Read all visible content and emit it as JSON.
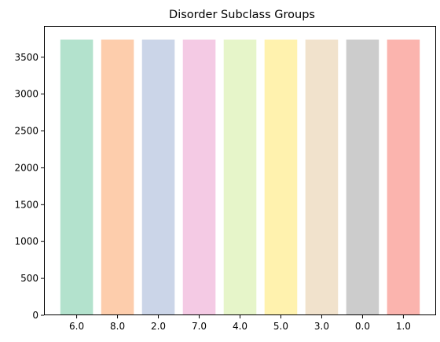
{
  "chart_data": {
    "type": "bar",
    "title": "Disorder Subclass Groups",
    "xlabel": "",
    "ylabel": "",
    "categories": [
      "6.0",
      "8.0",
      "2.0",
      "7.0",
      "4.0",
      "5.0",
      "3.0",
      "0.0",
      "1.0"
    ],
    "values": [
      3738,
      3738,
      3738,
      3738,
      3738,
      3738,
      3738,
      3738,
      3738
    ],
    "colors": [
      "#b3e2cd",
      "#fdcdac",
      "#cbd5e8",
      "#f4cae4",
      "#e6f5c9",
      "#fff2ae",
      "#f1e2cc",
      "#cccccc",
      "#fbb4ae"
    ],
    "ylim": [
      0,
      3924
    ],
    "yticks": [
      0,
      500,
      1000,
      1500,
      2000,
      2500,
      3000,
      3500
    ],
    "grid": false,
    "legend": false
  }
}
